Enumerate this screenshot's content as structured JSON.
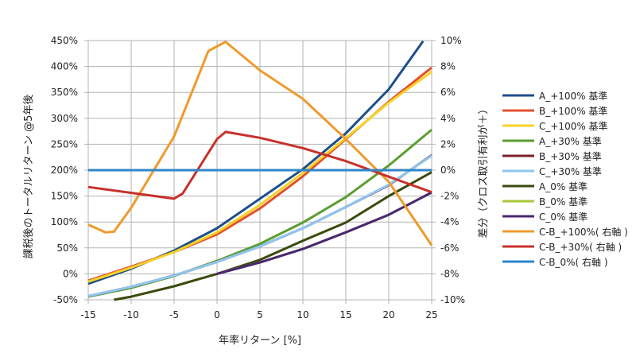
{
  "chart_data": {
    "type": "line",
    "title": "",
    "xlabel": "年率リターン [%]",
    "ylabel": "課税後のトータルリターン @5年後",
    "y2label": "差分（クロス取引有利が＋）",
    "xlim": [
      -15,
      25
    ],
    "ylim": [
      -50,
      450
    ],
    "y2lim": [
      -10,
      10
    ],
    "xticks": [
      "-15",
      "-10",
      "-5",
      "0",
      "5",
      "10",
      "15",
      "20",
      "25"
    ],
    "yticks": [
      "-50%",
      "0%",
      "50%",
      "100%",
      "150%",
      "200%",
      "250%",
      "300%",
      "350%",
      "400%",
      "450%"
    ],
    "y2ticks": [
      "-10%",
      "-8%",
      "-6%",
      "-4%",
      "-2%",
      "0%",
      "2%",
      "4%",
      "6%",
      "8%",
      "10%"
    ],
    "grid": true,
    "legend_position": "right",
    "series": [
      {
        "name": "A_+100% 基準",
        "color": "#1f4e8c",
        "axis": "left",
        "points": [
          [
            -15,
            -19
          ],
          [
            -10,
            10
          ],
          [
            -5,
            45
          ],
          [
            0,
            88
          ],
          [
            5,
            145
          ],
          [
            10,
            202
          ],
          [
            15,
            271
          ],
          [
            20,
            356
          ],
          [
            24,
            449
          ]
        ]
      },
      {
        "name": "B_+100% 基準",
        "color": "#e4502f",
        "axis": "left",
        "points": [
          [
            -15,
            -13
          ],
          [
            -10,
            14
          ],
          [
            -5,
            42
          ],
          [
            0,
            76
          ],
          [
            5,
            126
          ],
          [
            10,
            188
          ],
          [
            15,
            260
          ],
          [
            20,
            332
          ],
          [
            25,
            398
          ]
        ]
      },
      {
        "name": "C_+100% 基準",
        "color": "#f5d327",
        "axis": "left",
        "points": [
          [
            -15,
            -15
          ],
          [
            -10,
            12
          ],
          [
            -5,
            42
          ],
          [
            0,
            80
          ],
          [
            5,
            133
          ],
          [
            10,
            195
          ],
          [
            15,
            262
          ],
          [
            20,
            330
          ],
          [
            25,
            390
          ]
        ]
      },
      {
        "name": "A_+30% 基準",
        "color": "#5a9e2f",
        "axis": "left",
        "points": [
          [
            -15,
            -44
          ],
          [
            -10,
            -27
          ],
          [
            -5,
            -4
          ],
          [
            0,
            25
          ],
          [
            5,
            58
          ],
          [
            10,
            99
          ],
          [
            15,
            148
          ],
          [
            20,
            209
          ],
          [
            25,
            278
          ]
        ]
      },
      {
        "name": "B_+30% 基準",
        "color": "#7a1f2b",
        "axis": "left",
        "points": [
          [
            -15,
            -43
          ],
          [
            -10,
            -25
          ],
          [
            -5,
            -3
          ],
          [
            0,
            23
          ],
          [
            5,
            53
          ],
          [
            10,
            88
          ],
          [
            15,
            129
          ],
          [
            20,
            171
          ],
          [
            25,
            229
          ]
        ]
      },
      {
        "name": "C_+30% 基準",
        "color": "#8ec6ef",
        "axis": "left",
        "points": [
          [
            -15,
            -43
          ],
          [
            -10,
            -25
          ],
          [
            -5,
            -3
          ],
          [
            0,
            23
          ],
          [
            5,
            53
          ],
          [
            10,
            88
          ],
          [
            15,
            129
          ],
          [
            20,
            172
          ],
          [
            25,
            228
          ]
        ]
      },
      {
        "name": "A_0% 基準",
        "color": "#3a4a0c",
        "axis": "left",
        "points": [
          [
            -12,
            -50
          ],
          [
            -10,
            -44
          ],
          [
            -5,
            -24
          ],
          [
            0,
            0
          ],
          [
            5,
            27
          ],
          [
            10,
            64
          ],
          [
            15,
            99
          ],
          [
            20,
            150
          ],
          [
            25,
            196
          ]
        ]
      },
      {
        "name": "B_0% 基準",
        "color": "#a9c73a",
        "axis": "left",
        "points": [
          [
            0,
            0
          ],
          [
            5,
            22
          ],
          [
            10,
            48
          ],
          [
            15,
            80
          ],
          [
            20,
            114
          ],
          [
            25,
            157
          ]
        ]
      },
      {
        "name": "C_0% 基準",
        "color": "#4b2673",
        "axis": "left",
        "points": [
          [
            0,
            0
          ],
          [
            5,
            22
          ],
          [
            10,
            48
          ],
          [
            15,
            80
          ],
          [
            20,
            114
          ],
          [
            25,
            157
          ]
        ]
      },
      {
        "name": "C-B_+100%( 右軸 )",
        "color": "#f09a2c",
        "axis": "right",
        "points": [
          [
            -15,
            -4.2
          ],
          [
            -13,
            -4.8
          ],
          [
            -12,
            -4.75
          ],
          [
            -10,
            -2.9
          ],
          [
            -5,
            2.6
          ],
          [
            -1,
            9.2
          ],
          [
            1,
            9.9
          ],
          [
            5,
            7.7
          ],
          [
            10,
            5.5
          ],
          [
            15,
            2.4
          ],
          [
            20,
            -0.9
          ],
          [
            25,
            -5.8
          ]
        ]
      },
      {
        "name": "C-B_+30%( 右軸 )",
        "color": "#c8312b",
        "axis": "right",
        "points": [
          [
            -15,
            -1.3
          ],
          [
            -5,
            -2.2
          ],
          [
            -4,
            -1.8
          ],
          [
            0,
            2.4
          ],
          [
            1,
            2.95
          ],
          [
            5,
            2.5
          ],
          [
            10,
            1.7
          ],
          [
            15,
            0.7
          ],
          [
            20,
            -0.5
          ],
          [
            25,
            -1.7
          ]
        ]
      },
      {
        "name": "C-B_0%( 右軸 )",
        "color": "#2f86c8",
        "axis": "right",
        "points": [
          [
            -15,
            0
          ],
          [
            25,
            0
          ]
        ]
      }
    ]
  }
}
